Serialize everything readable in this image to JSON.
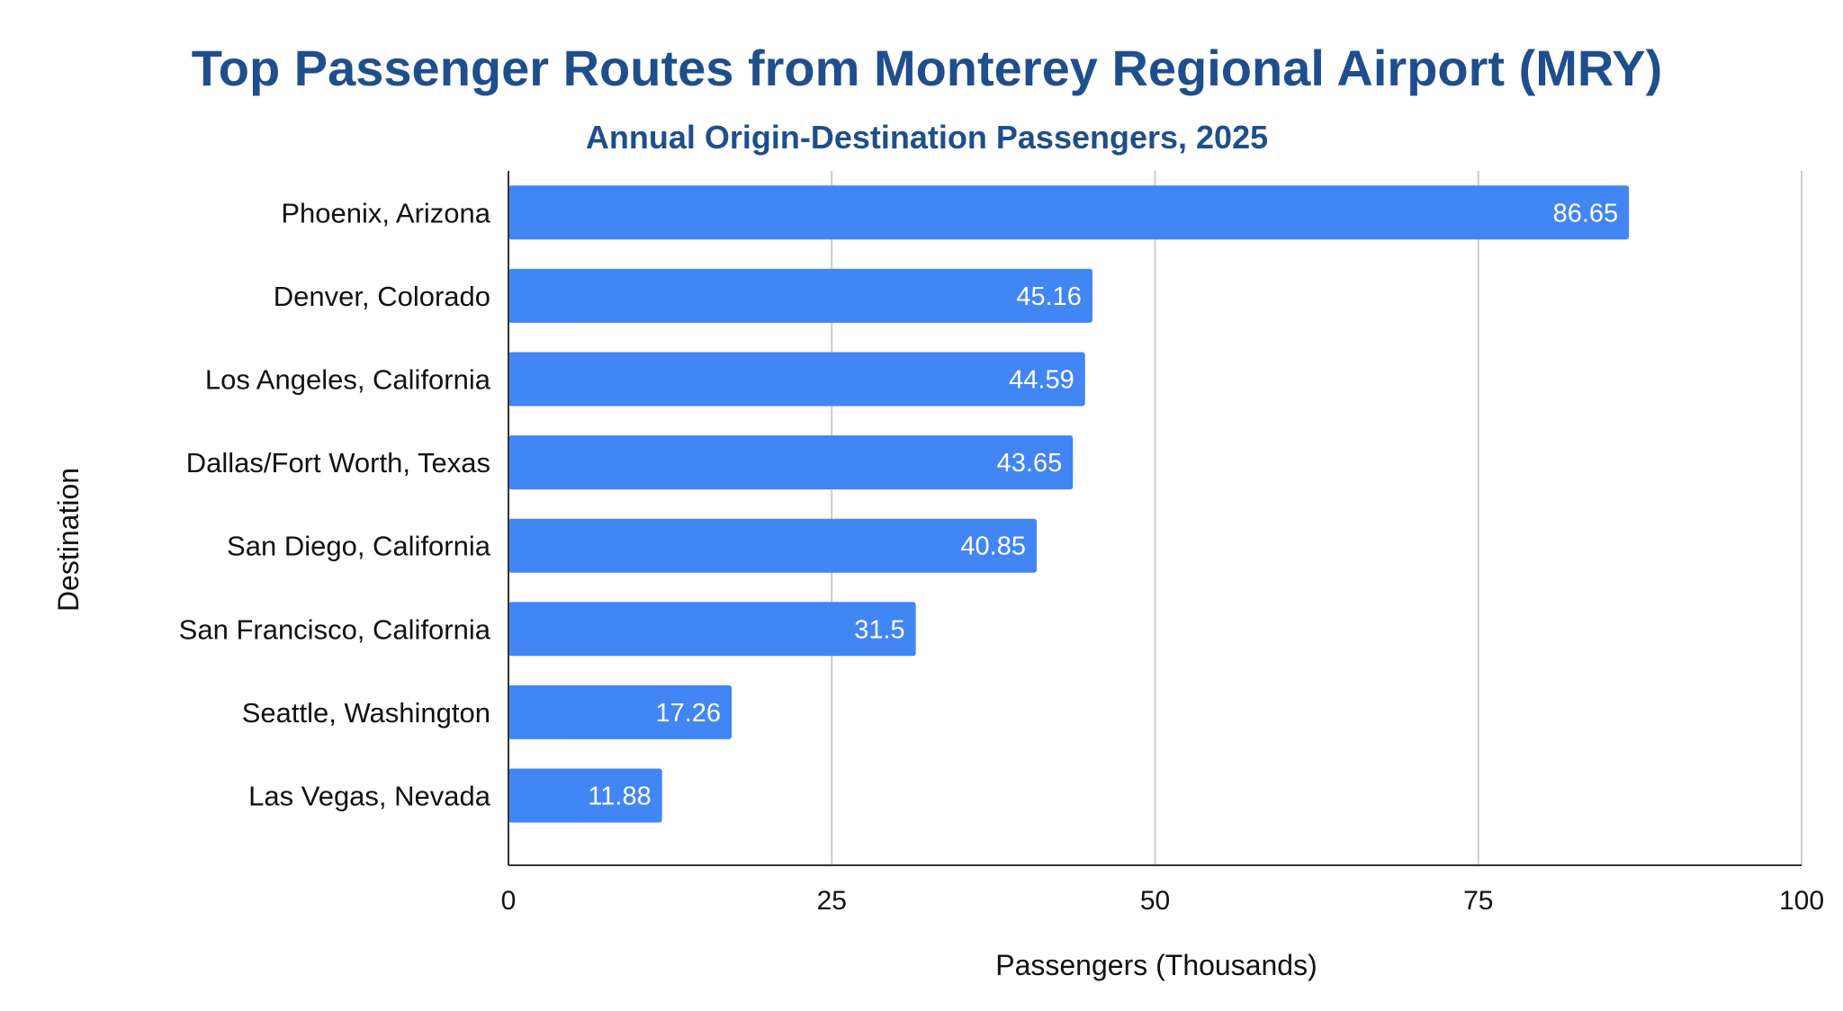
{
  "chart_data": {
    "type": "bar",
    "orientation": "horizontal",
    "title": "Top Passenger Routes from Monterey Regional Airport (MRY)",
    "subtitle": "Annual Origin-Destination Passengers, 2025",
    "xlabel": "Passengers (Thousands)",
    "ylabel": "Destination",
    "categories": [
      "Phoenix, Arizona",
      "Denver, Colorado",
      "Los Angeles, California",
      "Dallas/Fort Worth, Texas",
      "San Diego, California",
      "San Francisco, California",
      "Seattle, Washington",
      "Las Vegas, Nevada"
    ],
    "values": [
      86.65,
      45.16,
      44.59,
      43.65,
      40.85,
      31.5,
      17.26,
      11.88
    ],
    "data_labels": [
      "86.65",
      "45.16",
      "44.59",
      "43.65",
      "40.85",
      "31.5",
      "17.26",
      "11.88"
    ],
    "xlim": [
      0,
      100
    ],
    "xticks": [
      0,
      25,
      50,
      75,
      100
    ],
    "xtick_labels": [
      "0",
      "25",
      "50",
      "75",
      "100"
    ],
    "grid": true,
    "legend": "none",
    "colors": {
      "bar": "#4285f4",
      "title": "#1f4e8c",
      "grid": "#cccccc",
      "axis": "#333333",
      "text": "#111111",
      "data_label": "#ffffff"
    }
  }
}
